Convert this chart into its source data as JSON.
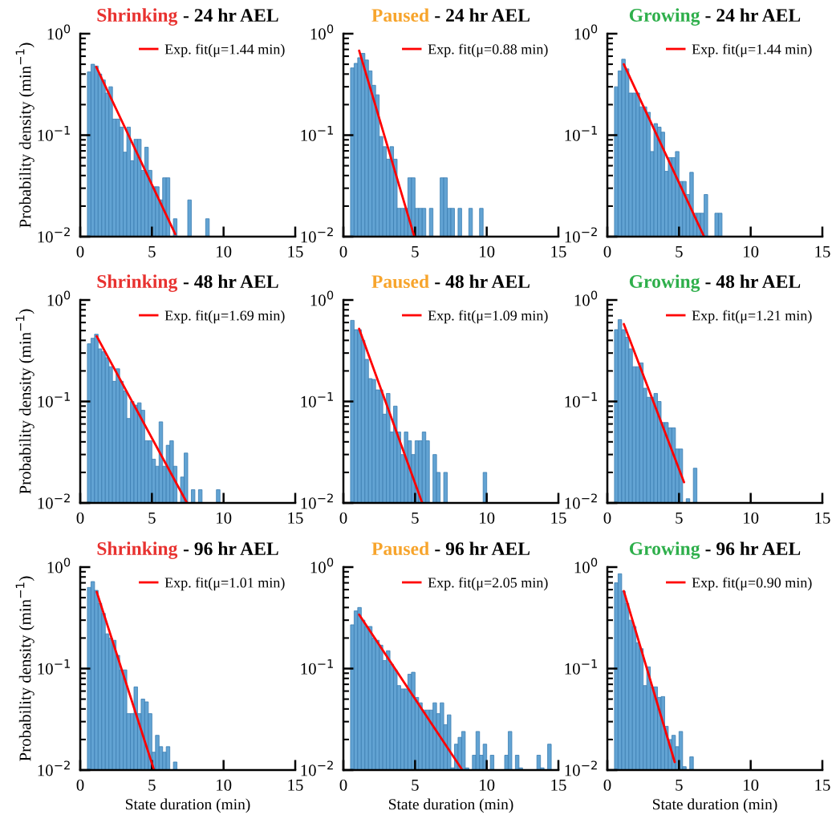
{
  "chart_data": [
    {
      "type": "histogram",
      "title": "Shrinking",
      "subtitle": "- 24 hr AEL",
      "ylabel": "Probability density (min$^{−1}$)",
      "xlim": [
        0,
        15
      ],
      "xticks": [
        0,
        5,
        10,
        15
      ],
      "ylim": [
        0.01,
        1
      ],
      "yticks": [
        {
          "value": 0.01,
          "label": "10$^{−2}$"
        },
        {
          "value": 0.1,
          "label": "10$^{−1}$"
        },
        {
          "value": 1,
          "label": "10$^{0}$"
        }
      ],
      "log": "y",
      "grid": false,
      "legend": "top right",
      "series": [
        {
          "type": "histogram",
          "color": "#62a3d3",
          "bins": [
            0.5,
            0.75,
            1.0,
            1.25,
            1.5,
            1.75,
            2.0,
            2.25,
            2.5,
            2.75,
            3.0,
            3.25,
            3.5,
            3.75,
            4.0,
            4.25,
            4.5,
            4.75,
            5.0,
            5.25,
            5.5,
            5.75,
            6.0,
            6.25,
            6.5,
            6.75,
            7.0,
            7.25,
            7.5,
            7.75,
            8.0,
            8.25,
            8.5,
            8.75,
            9.0
          ],
          "values": [
            0.42,
            0.5,
            0.48,
            0.4,
            0.35,
            0.26,
            0.3,
            0.144,
            0.144,
            0.12,
            0.068,
            0.12,
            0.056,
            0.091,
            0.091,
            0.045,
            0.076,
            0.045,
            0.031,
            0.031,
            0.023,
            0.038,
            0.038,
            null,
            0.015,
            null,
            null,
            null,
            0.023,
            null,
            null,
            null,
            null,
            0.015
          ]
        },
        {
          "type": "line",
          "name": "Exp. fit(μ=1.44 min)",
          "color": "#ff0000",
          "line_style": "solid",
          "x": [
            1.12,
            6.63
          ],
          "values": [
            0.47,
            0.0106
          ]
        }
      ]
    },
    {
      "type": "histogram",
      "title": "Paused",
      "subtitle": "- 24 hr AEL",
      "xlim": [
        0,
        15
      ],
      "xticks": [
        0,
        5,
        10,
        15
      ],
      "ylim": [
        0.01,
        1
      ],
      "yticks": [
        {
          "value": 0.01,
          "label": "10$^{−2}$"
        },
        {
          "value": 0.1,
          "label": "10$^{−1}$"
        },
        {
          "value": 1,
          "label": "10$^{0}$"
        }
      ],
      "log": "y",
      "grid": false,
      "legend": "top right",
      "series": [
        {
          "type": "histogram",
          "color": "#62a3d3",
          "bins": [
            0.5,
            0.75,
            1.0,
            1.25,
            1.5,
            1.75,
            2.0,
            2.25,
            2.5,
            2.75,
            3.0,
            3.25,
            3.5,
            3.75,
            4.0,
            4.25,
            4.5,
            4.75,
            5.0,
            5.25,
            5.5,
            5.75,
            6.0,
            6.25,
            6.5,
            6.75,
            7.0,
            7.25,
            7.5,
            7.75,
            8.0,
            8.25,
            8.5,
            8.75,
            9.0,
            9.25,
            9.5,
            9.75
          ],
          "values": [
            0.46,
            0.51,
            0.58,
            0.64,
            0.55,
            0.43,
            0.31,
            0.25,
            0.097,
            0.077,
            0.058,
            0.077,
            0.058,
            0.019,
            0.019,
            0.019,
            0.038,
            0.038,
            0.019,
            0.019,
            0.019,
            null,
            0.019,
            null,
            null,
            0.038,
            0.038,
            0.019,
            0.019,
            null,
            0.019,
            null,
            null,
            0.019,
            null,
            null,
            0.019
          ]
        },
        {
          "type": "line",
          "name": "Exp. fit(μ=0.88 min)",
          "color": "#ff0000",
          "line_style": "solid",
          "x": [
            1.1,
            4.95
          ],
          "values": [
            0.68,
            0.01
          ]
        }
      ]
    },
    {
      "type": "histogram",
      "title": "Growing",
      "subtitle": "- 24 hr AEL",
      "xlim": [
        0,
        15
      ],
      "xticks": [
        0,
        5,
        10,
        15
      ],
      "ylim": [
        0.01,
        1
      ],
      "yticks": [
        {
          "value": 0.01,
          "label": "10$^{−2}$"
        },
        {
          "value": 0.1,
          "label": "10$^{−1}$"
        },
        {
          "value": 1,
          "label": "10$^{0}$"
        }
      ],
      "log": "y",
      "grid": false,
      "legend": "top right",
      "series": [
        {
          "type": "histogram",
          "color": "#62a3d3",
          "bins": [
            0.5,
            0.75,
            1.0,
            1.25,
            1.5,
            1.75,
            2.0,
            2.25,
            2.5,
            2.75,
            3.0,
            3.25,
            3.5,
            3.75,
            4.0,
            4.25,
            4.5,
            4.75,
            5.0,
            5.25,
            5.5,
            5.75,
            6.0,
            6.25,
            6.5,
            6.75,
            7.0,
            7.25,
            7.5,
            7.75,
            8.0
          ],
          "values": [
            0.3,
            0.43,
            0.56,
            0.45,
            0.26,
            0.26,
            0.26,
            0.19,
            0.19,
            0.168,
            0.069,
            0.13,
            0.12,
            0.107,
            0.044,
            0.06,
            0.06,
            0.069,
            0.035,
            0.035,
            0.026,
            0.043,
            0.017,
            0.017,
            0.017,
            0.026,
            null,
            null,
            0.017,
            0.017
          ]
        },
        {
          "type": "line",
          "name": "Exp. fit(μ=1.44 min)",
          "color": "#ff0000",
          "line_style": "solid",
          "x": [
            1.15,
            6.75
          ],
          "values": [
            0.5,
            0.01
          ]
        }
      ]
    },
    {
      "type": "histogram",
      "title": "Shrinking",
      "subtitle": "- 48 hr AEL",
      "ylabel": "Probability density (min$^{−1}$)",
      "xlim": [
        0,
        15
      ],
      "xticks": [
        0,
        5,
        10,
        15
      ],
      "ylim": [
        0.01,
        1
      ],
      "yticks": [
        {
          "value": 0.01,
          "label": "10$^{−2}$"
        },
        {
          "value": 0.1,
          "label": "10$^{−1}$"
        },
        {
          "value": 1,
          "label": "10$^{0}$"
        }
      ],
      "log": "y",
      "grid": false,
      "legend": "top right",
      "series": [
        {
          "type": "histogram",
          "color": "#62a3d3",
          "bins": [
            0.5,
            0.75,
            1.0,
            1.25,
            1.5,
            1.75,
            2.0,
            2.25,
            2.5,
            2.75,
            3.0,
            3.25,
            3.5,
            3.75,
            4.0,
            4.25,
            4.5,
            4.75,
            5.0,
            5.25,
            5.5,
            5.75,
            6.0,
            6.25,
            6.5,
            6.75,
            7.0,
            7.25,
            7.5,
            7.75,
            8.0,
            8.25,
            8.5,
            8.75,
            9.0,
            9.25,
            9.5,
            9.75
          ],
          "values": [
            0.37,
            0.42,
            0.46,
            0.33,
            0.31,
            0.27,
            0.22,
            0.158,
            0.21,
            0.158,
            0.127,
            0.068,
            0.1,
            0.092,
            0.097,
            0.082,
            0.041,
            0.041,
            0.027,
            0.023,
            0.063,
            0.023,
            0.037,
            0.041,
            0.023,
            null,
            0.018,
            0.031,
            null,
            0.0135,
            null,
            0.0135,
            null,
            null,
            null,
            null,
            0.0135
          ]
        },
        {
          "type": "line",
          "name": "Exp. fit(μ=1.69 min)",
          "color": "#ff0000",
          "line_style": "solid",
          "x": [
            1.15,
            7.45
          ],
          "values": [
            0.44,
            0.01
          ]
        }
      ]
    },
    {
      "type": "histogram",
      "title": "Paused",
      "subtitle": "- 48 hr AEL",
      "xlim": [
        0,
        15
      ],
      "xticks": [
        0,
        5,
        10,
        15
      ],
      "ylim": [
        0.01,
        1
      ],
      "yticks": [
        {
          "value": 0.01,
          "label": "10$^{−2}$"
        },
        {
          "value": 0.1,
          "label": "10$^{−1}$"
        },
        {
          "value": 1,
          "label": "10$^{0}$"
        }
      ],
      "log": "y",
      "grid": false,
      "legend": "top right",
      "series": [
        {
          "type": "histogram",
          "color": "#62a3d3",
          "bins": [
            0.5,
            0.75,
            1.0,
            1.25,
            1.5,
            1.75,
            2.0,
            2.25,
            2.5,
            2.75,
            3.0,
            3.25,
            3.5,
            3.75,
            4.0,
            4.25,
            4.5,
            4.75,
            5.0,
            5.25,
            5.5,
            5.75,
            6.0,
            6.25,
            6.5,
            6.75,
            7.0,
            7.25,
            7.5,
            7.75,
            8.0,
            8.25,
            8.5,
            8.75,
            9.0,
            9.25,
            9.5,
            9.75,
            10.0
          ],
          "values": [
            0.63,
            0.51,
            0.51,
            0.4,
            0.26,
            0.168,
            0.165,
            0.13,
            0.13,
            0.075,
            0.12,
            0.05,
            0.09,
            0.05,
            0.03,
            0.05,
            0.041,
            0.03,
            0.041,
            0.041,
            0.05,
            0.041,
            null,
            0.03,
            0.02,
            null,
            0.02,
            null,
            null,
            null,
            null,
            null,
            null,
            null,
            null,
            null,
            null,
            0.02
          ]
        },
        {
          "type": "line",
          "name": "Exp. fit(μ=1.09 min)",
          "color": "#ff0000",
          "line_style": "solid",
          "x": [
            1.1,
            5.5
          ],
          "values": [
            0.52,
            0.01
          ]
        }
      ]
    },
    {
      "type": "histogram",
      "title": "Growing",
      "subtitle": "- 48 hr AEL",
      "xlim": [
        0,
        15
      ],
      "xticks": [
        0,
        5,
        10,
        15
      ],
      "ylim": [
        0.01,
        1
      ],
      "yticks": [
        {
          "value": 0.01,
          "label": "10$^{−2}$"
        },
        {
          "value": 0.1,
          "label": "10$^{−1}$"
        },
        {
          "value": 1,
          "label": "10$^{0}$"
        }
      ],
      "log": "y",
      "grid": false,
      "legend": "top right",
      "series": [
        {
          "type": "histogram",
          "color": "#62a3d3",
          "bins": [
            0.5,
            0.75,
            1.0,
            1.25,
            1.5,
            1.75,
            2.0,
            2.25,
            2.5,
            2.75,
            3.0,
            3.25,
            3.5,
            3.75,
            4.0,
            4.25,
            4.5,
            4.75,
            5.0,
            5.25,
            5.5,
            5.75,
            6.0,
            6.25
          ],
          "values": [
            0.51,
            0.64,
            0.51,
            0.43,
            0.33,
            0.22,
            0.22,
            0.24,
            0.135,
            0.11,
            0.11,
            0.12,
            0.1,
            0.062,
            0.062,
            0.055,
            0.055,
            0.034,
            0.034,
            null,
            0.011,
            null,
            0.022
          ]
        },
        {
          "type": "line",
          "name": "Exp. fit(μ=1.21 min)",
          "color": "#ff0000",
          "line_style": "solid",
          "x": [
            1.15,
            5.35
          ],
          "values": [
            0.58,
            0.016
          ]
        }
      ]
    },
    {
      "type": "histogram",
      "title": "Shrinking",
      "subtitle": "- 96 hr AEL",
      "ylabel": "Probability density (min$^{−1}$)",
      "xlabel": "State duration (min)",
      "xlim": [
        0,
        15
      ],
      "xticks": [
        0,
        5,
        10,
        15
      ],
      "ylim": [
        0.01,
        1
      ],
      "yticks": [
        {
          "value": 0.01,
          "label": "10$^{−2}$"
        },
        {
          "value": 0.1,
          "label": "10$^{−1}$"
        },
        {
          "value": 1,
          "label": "10$^{0}$"
        }
      ],
      "log": "y",
      "grid": false,
      "legend": "top right",
      "series": [
        {
          "type": "histogram",
          "color": "#62a3d3",
          "bins": [
            0.5,
            0.75,
            1.0,
            1.25,
            1.5,
            1.75,
            2.0,
            2.25,
            2.5,
            2.75,
            3.0,
            3.25,
            3.5,
            3.75,
            4.0,
            4.25,
            4.5,
            4.75,
            5.0,
            5.25,
            5.5,
            5.75,
            6.0,
            6.25,
            6.5,
            6.75
          ],
          "values": [
            0.63,
            0.72,
            0.59,
            0.44,
            0.35,
            0.22,
            0.2,
            0.19,
            0.135,
            0.097,
            0.097,
            0.036,
            0.036,
            0.066,
            0.036,
            0.05,
            0.047,
            0.036,
            0.015,
            0.022,
            0.017,
            0.015,
            0.017,
            null,
            0.012
          ]
        },
        {
          "type": "line",
          "name": "Exp. fit(μ=1.01 min)",
          "color": "#ff0000",
          "line_style": "solid",
          "x": [
            1.15,
            5.15
          ],
          "values": [
            0.57,
            0.01
          ]
        }
      ]
    },
    {
      "type": "histogram",
      "title": "Paused",
      "subtitle": "- 96 hr AEL",
      "xlabel": "State duration (min)",
      "xlim": [
        0,
        15
      ],
      "xticks": [
        0,
        5,
        10,
        15
      ],
      "ylim": [
        0.01,
        1
      ],
      "yticks": [
        {
          "value": 0.01,
          "label": "10$^{−2}$"
        },
        {
          "value": 0.1,
          "label": "10$^{−1}$"
        },
        {
          "value": 1,
          "label": "10$^{0}$"
        }
      ],
      "log": "y",
      "grid": false,
      "legend": "top right",
      "series": [
        {
          "type": "histogram",
          "color": "#62a3d3",
          "bins": [
            0.5,
            0.75,
            1.0,
            1.25,
            1.5,
            1.75,
            2.0,
            2.25,
            2.5,
            2.75,
            3.0,
            3.25,
            3.5,
            3.75,
            4.0,
            4.25,
            4.5,
            4.75,
            5.0,
            5.25,
            5.5,
            5.75,
            6.0,
            6.25,
            6.5,
            6.75,
            7.0,
            7.25,
            7.5,
            7.75,
            8.0,
            8.25,
            8.5,
            8.75,
            9.0,
            9.25,
            9.5,
            9.75,
            10.0,
            10.25,
            10.5,
            10.75,
            11.0,
            11.25,
            11.5,
            11.75,
            12.0,
            12.25,
            12.5,
            12.75,
            13.0,
            13.25,
            13.5,
            13.75,
            14.0,
            14.25,
            14.5
          ],
          "values": [
            0.27,
            0.37,
            0.4,
            0.3,
            0.26,
            0.26,
            0.2,
            0.19,
            0.17,
            0.12,
            0.15,
            0.11,
            0.097,
            0.068,
            0.063,
            0.063,
            0.088,
            0.092,
            0.052,
            0.046,
            0.039,
            0.039,
            0.039,
            0.046,
            0.036,
            0.046,
            0.028,
            0.035,
            0.0105,
            0.018,
            0.021,
            0.024,
            0.0105,
            null,
            0.014,
            0.024,
            0.014,
            0.018,
            null,
            0.014,
            null,
            null,
            null,
            0.014,
            0.024,
            null,
            0.014,
            0.0105,
            null,
            null,
            null,
            null,
            0.014,
            0.0105,
            null,
            0.018
          ]
        },
        {
          "type": "line",
          "name": "Exp. fit(μ=2.05 min)",
          "color": "#ff0000",
          "line_style": "solid",
          "x": [
            1.1,
            8.3
          ],
          "values": [
            0.34,
            0.01
          ]
        }
      ]
    },
    {
      "type": "histogram",
      "title": "Growing",
      "subtitle": "- 96 hr AEL",
      "xlabel": "State duration (min)",
      "xlim": [
        0,
        15
      ],
      "xticks": [
        0,
        5,
        10,
        15
      ],
      "ylim": [
        0.01,
        1
      ],
      "yticks": [
        {
          "value": 0.01,
          "label": "10$^{−2}$"
        },
        {
          "value": 0.1,
          "label": "10$^{−1}$"
        },
        {
          "value": 1,
          "label": "10$^{0}$"
        }
      ],
      "log": "y",
      "grid": false,
      "legend": "top right",
      "series": [
        {
          "type": "histogram",
          "color": "#62a3d3",
          "bins": [
            0.5,
            0.75,
            1.0,
            1.25,
            1.5,
            1.75,
            2.0,
            2.25,
            2.5,
            2.75,
            3.0,
            3.25,
            3.5,
            3.75,
            4.0,
            4.25,
            4.5,
            4.75,
            5.0,
            5.25,
            5.5,
            5.75,
            6.0
          ],
          "values": [
            0.7,
            0.86,
            0.58,
            0.44,
            0.3,
            0.26,
            0.18,
            0.157,
            0.068,
            0.104,
            0.066,
            0.066,
            0.052,
            0.053,
            0.027,
            0.02,
            0.022,
            0.017,
            0.024,
            0.0108,
            null,
            0.0135
          ]
        },
        {
          "type": "line",
          "name": "Exp. fit(μ=0.90 min)",
          "color": "#ff0000",
          "line_style": "solid",
          "x": [
            1.15,
            4.7
          ],
          "values": [
            0.58,
            0.012
          ]
        }
      ]
    }
  ]
}
